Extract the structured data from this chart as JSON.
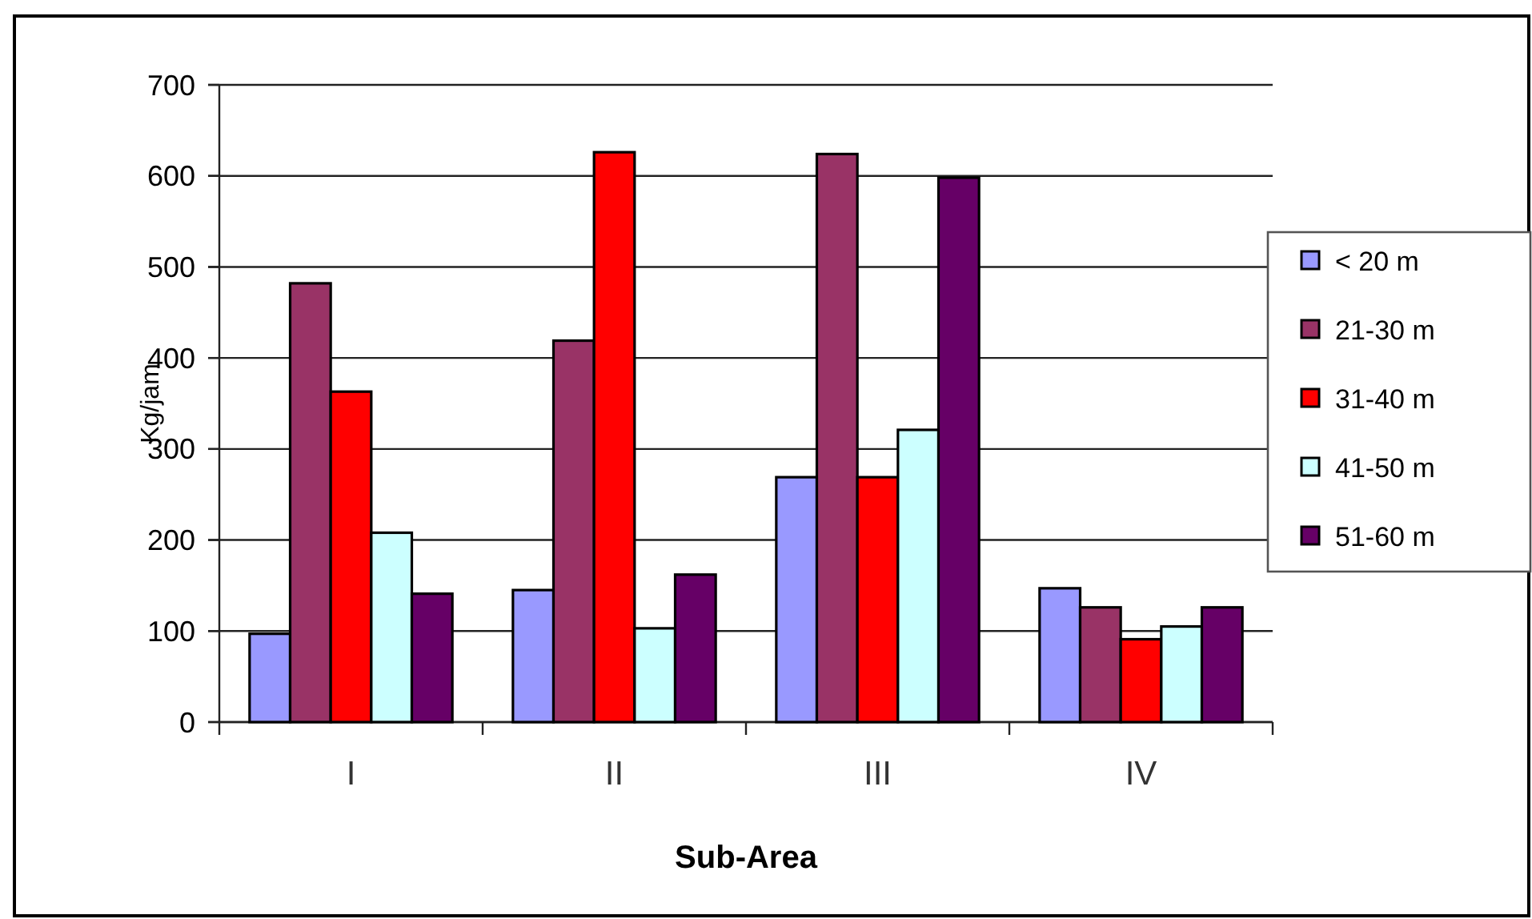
{
  "chart_data": {
    "type": "bar",
    "xlabel": "Sub-Area",
    "ylabel": "Kg/jam",
    "categories": [
      "I",
      "II",
      "III",
      "IV"
    ],
    "series": [
      {
        "name": "< 20 m",
        "color": "#9999ff",
        "values": [
          97,
          145,
          269,
          147
        ]
      },
      {
        "name": "21-30 m",
        "color": "#993366",
        "values": [
          482,
          419,
          624,
          126
        ]
      },
      {
        "name": "31-40 m",
        "color": "#ff0000",
        "values": [
          363,
          626,
          269,
          91
        ]
      },
      {
        "name": "41-50 m",
        "color": "#ccffff",
        "values": [
          208,
          103,
          321,
          105
        ]
      },
      {
        "name": "51-60 m",
        "color": "#660066",
        "values": [
          141,
          162,
          598,
          126
        ]
      }
    ],
    "ylim": [
      0,
      700
    ],
    "yticks": [
      0,
      100,
      200,
      300,
      400,
      500,
      600,
      700
    ],
    "grid": "y",
    "legend": "right"
  }
}
